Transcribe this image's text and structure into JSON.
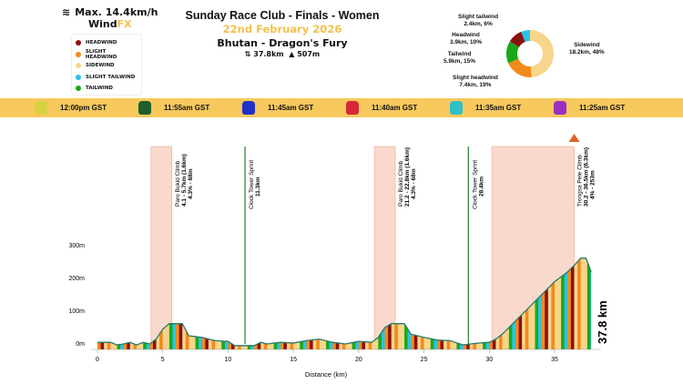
{
  "wind": {
    "max_label": "Max. 14.4km/h",
    "icon": "wind-icon",
    "brand_a": "Wind",
    "brand_b": "FX"
  },
  "legend": [
    {
      "label": "HEADWIND",
      "color": "#8b1010"
    },
    {
      "label": "SLIGHT HEADWIND",
      "color": "#f28a1a"
    },
    {
      "label": "SIDEWIND",
      "color": "#f7d58a"
    },
    {
      "label": "SLIGHT TAILWIND",
      "color": "#29c4e8"
    },
    {
      "label": "TAILWIND",
      "color": "#1aa81a"
    }
  ],
  "header": {
    "title": "Sunday Race Club - Finals - Women",
    "date": "22nd February 2026",
    "route": "Bhutan - Dragon's Fury",
    "distance": "37.8km",
    "elevation": "507m"
  },
  "donut": [
    {
      "name": "Sidewind",
      "value": "18.2km, 48%",
      "pct": 48,
      "color": "#f7d58a"
    },
    {
      "name": "Slight headwind",
      "value": "7.4km, 19%",
      "pct": 19,
      "color": "#f28a1a"
    },
    {
      "name": "Tailwind",
      "value": "5.9km, 15%",
      "pct": 15,
      "color": "#1aa81a"
    },
    {
      "name": "Headwind",
      "value": "3.9km, 10%",
      "pct": 10,
      "color": "#8b1010"
    },
    {
      "name": "Slight tailwind",
      "value": "2.4km, 6%",
      "pct": 6,
      "color": "#29c4e8"
    }
  ],
  "schedule": [
    {
      "time": "12:00pm GST",
      "color": "#d9d040"
    },
    {
      "time": "11:55am GST",
      "color": "#1f5e2a"
    },
    {
      "time": "11:45am GST",
      "color": "#2030c8"
    },
    {
      "time": "11:40am GST",
      "color": "#d82838"
    },
    {
      "time": "11:35am GST",
      "color": "#30c0c8"
    },
    {
      "time": "11:25am GST",
      "color": "#9a30c0"
    }
  ],
  "chart_data": {
    "type": "area",
    "xlabel": "Distance (km)",
    "xticks": [
      0,
      5,
      10,
      15,
      20,
      25,
      30,
      35
    ],
    "yticks": [
      {
        "v": 0,
        "l": "0m"
      },
      {
        "v": 100,
        "l": "100m"
      },
      {
        "v": 200,
        "l": "200m"
      },
      {
        "v": 300,
        "l": "300m"
      }
    ],
    "total_label": "37.8 km",
    "profile": [
      [
        0,
        5
      ],
      [
        1,
        5
      ],
      [
        1.5,
        -3
      ],
      [
        2,
        0
      ],
      [
        2.5,
        5
      ],
      [
        3,
        -3
      ],
      [
        3.5,
        5
      ],
      [
        4,
        0
      ],
      [
        4.5,
        15
      ],
      [
        5,
        45
      ],
      [
        5.5,
        62
      ],
      [
        6.5,
        62
      ],
      [
        7,
        25
      ],
      [
        8,
        20
      ],
      [
        9,
        10
      ],
      [
        10,
        8
      ],
      [
        10.5,
        -5
      ],
      [
        12,
        -5
      ],
      [
        12.5,
        5
      ],
      [
        13,
        0
      ],
      [
        14,
        5
      ],
      [
        15,
        3
      ],
      [
        16,
        10
      ],
      [
        17,
        15
      ],
      [
        18,
        5
      ],
      [
        19,
        0
      ],
      [
        20,
        8
      ],
      [
        21,
        5
      ],
      [
        21.5,
        20
      ],
      [
        22,
        50
      ],
      [
        22.5,
        62
      ],
      [
        23.5,
        62
      ],
      [
        24,
        30
      ],
      [
        25,
        20
      ],
      [
        26,
        12
      ],
      [
        27,
        10
      ],
      [
        28,
        -3
      ],
      [
        29,
        2
      ],
      [
        30,
        5
      ],
      [
        30.5,
        15
      ],
      [
        31,
        30
      ],
      [
        32,
        70
      ],
      [
        33,
        110
      ],
      [
        34,
        150
      ],
      [
        35,
        190
      ],
      [
        36,
        220
      ],
      [
        36.5,
        240
      ],
      [
        37,
        262
      ],
      [
        37.4,
        262
      ],
      [
        37.8,
        220
      ]
    ],
    "climbs": [
      {
        "start": 4.1,
        "end": 5.7,
        "name": "Paro Bukid Climb",
        "detail": "4.1 - 5.7km (1.6km)",
        "grade": "4.3% - 68m"
      },
      {
        "start": 21.2,
        "end": 22.8,
        "name": "Paro Bukid Climb",
        "detail": "21.2 - 22.8km (1.6km)",
        "grade": "4.3% - 68m"
      },
      {
        "start": 30.2,
        "end": 36.5,
        "name": "Trongsa Pele Climb",
        "detail": "30.2 - 36.5km (6.3km)",
        "grade": "4% - 253m"
      }
    ],
    "sprints": [
      {
        "at": 11.3,
        "name": "Clock Tower Sprint",
        "detail": "11.3km"
      },
      {
        "at": 28.4,
        "name": "Clock Tower Sprint",
        "detail": "28.4km"
      }
    ]
  }
}
